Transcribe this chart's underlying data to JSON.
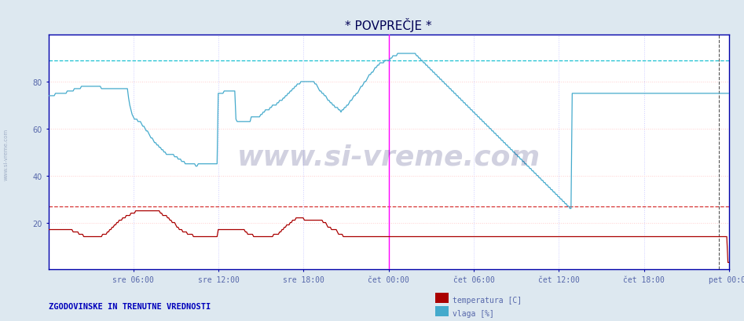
{
  "title": "* POVPREČJE *",
  "bg_color": "#dde8f0",
  "plot_bg_color": "#ffffff",
  "ylim": [
    0,
    100
  ],
  "x_tick_labels": [
    "sre 06:00",
    "sre 12:00",
    "sre 18:00",
    "čet 00:00",
    "čet 06:00",
    "čet 12:00",
    "čet 18:00",
    "pet 00:00"
  ],
  "y_tick_positions": [
    20,
    40,
    60,
    80
  ],
  "y_tick_labels": [
    "20",
    "40",
    "60",
    "80"
  ],
  "temp_color": "#aa0000",
  "vlaga_color": "#44aacc",
  "hline_temp": 27,
  "hline_vlaga": 89,
  "hline_temp_color": "#cc0000",
  "hline_vlaga_color": "#00bbcc",
  "footer_text": "ZGODOVINSKE IN TRENUTNE VREDNOSTI",
  "footer_color": "#0000bb",
  "legend_temp_label": "temperatura [C]",
  "legend_vlaga_label": "vlaga [%]",
  "watermark": "www.si-vreme.com",
  "title_color": "#000055",
  "title_fontsize": 11,
  "axis_label_color": "#5566aa",
  "num_points": 576,
  "temp_data": [
    17,
    17,
    17,
    17,
    17,
    17,
    17,
    17,
    17,
    17,
    17,
    17,
    17,
    17,
    17,
    17,
    17,
    17,
    17,
    17,
    17,
    16,
    16,
    16,
    16,
    16,
    15,
    15,
    15,
    15,
    14,
    14,
    14,
    14,
    14,
    14,
    14,
    14,
    14,
    14,
    14,
    14,
    14,
    14,
    14,
    14,
    15,
    15,
    15,
    15,
    16,
    16,
    17,
    17,
    18,
    18,
    19,
    19,
    20,
    20,
    21,
    21,
    21,
    22,
    22,
    22,
    23,
    23,
    23,
    23,
    24,
    24,
    24,
    24,
    25,
    25,
    25,
    25,
    25,
    25,
    25,
    25,
    25,
    25,
    25,
    25,
    25,
    25,
    25,
    25,
    25,
    25,
    25,
    25,
    25,
    24,
    24,
    23,
    23,
    23,
    23,
    22,
    22,
    21,
    21,
    20,
    20,
    20,
    19,
    18,
    18,
    17,
    17,
    17,
    16,
    16,
    16,
    16,
    15,
    15,
    15,
    15,
    15,
    14,
    14,
    14,
    14,
    14,
    14,
    14,
    14,
    14,
    14,
    14,
    14,
    14,
    14,
    14,
    14,
    14,
    14,
    14,
    14,
    14,
    17,
    17,
    17,
    17,
    17,
    17,
    17,
    17,
    17,
    17,
    17,
    17,
    17,
    17,
    17,
    17,
    17,
    17,
    17,
    17,
    17,
    17,
    17,
    16,
    16,
    15,
    15,
    15,
    15,
    15,
    14,
    14,
    14,
    14,
    14,
    14,
    14,
    14,
    14,
    14,
    14,
    14,
    14,
    14,
    14,
    14,
    14,
    15,
    15,
    15,
    15,
    15,
    16,
    16,
    17,
    17,
    18,
    18,
    19,
    19,
    19,
    20,
    20,
    21,
    21,
    21,
    22,
    22,
    22,
    22,
    22,
    22,
    22,
    21,
    21,
    21,
    21,
    21,
    21,
    21,
    21,
    21,
    21,
    21,
    21,
    21,
    21,
    21,
    21,
    20,
    20,
    20,
    19,
    18,
    18,
    18,
    17,
    17,
    17,
    17,
    17,
    16,
    15,
    15,
    15,
    15,
    14,
    14,
    14,
    14,
    14,
    14,
    14,
    14,
    14,
    14,
    14,
    14,
    14,
    14,
    14,
    14,
    14,
    14,
    14,
    14,
    14,
    14,
    14,
    14,
    14,
    14,
    14,
    14,
    14,
    14,
    14,
    14,
    14,
    14,
    14,
    14,
    14,
    14,
    14,
    14,
    14,
    14,
    14,
    14,
    14,
    14,
    14,
    14,
    14,
    14,
    14,
    14,
    14,
    14,
    14,
    14,
    14,
    14,
    14,
    14,
    14,
    14,
    14,
    14,
    14,
    14,
    14,
    14,
    14,
    14,
    14,
    14,
    14,
    14,
    14,
    14,
    14,
    14,
    14,
    14,
    14,
    14,
    14,
    14,
    14,
    14,
    14,
    14,
    14,
    14,
    14,
    14,
    14,
    14,
    14,
    14,
    14,
    14,
    14,
    14,
    14,
    14,
    14,
    14,
    14,
    14,
    14,
    14,
    14,
    14,
    14,
    14,
    14,
    14,
    14,
    14,
    14,
    14,
    14,
    14,
    14,
    14,
    14,
    14,
    14,
    14,
    14,
    14,
    14,
    14,
    14,
    14,
    14,
    14,
    14,
    14,
    14,
    14,
    14,
    14,
    14,
    14,
    14,
    14,
    14,
    14,
    14,
    14,
    14,
    14,
    14,
    14,
    14,
    14,
    14,
    14,
    14,
    14,
    14,
    14,
    14,
    14,
    14,
    14,
    14,
    14,
    14,
    14,
    14,
    14,
    14,
    14,
    14,
    14,
    14,
    14,
    14,
    14,
    14,
    14,
    14,
    14,
    14,
    14,
    14,
    14,
    14,
    14,
    14,
    14,
    14,
    14,
    14,
    14,
    14,
    14,
    14,
    14,
    14,
    14,
    14,
    14,
    14,
    14,
    14,
    14,
    14,
    14,
    14,
    14,
    14,
    14,
    14,
    14,
    14,
    14,
    14,
    14,
    14,
    14,
    14,
    14,
    14,
    14,
    14,
    14,
    14,
    14,
    14,
    14,
    14,
    14,
    14,
    14,
    14,
    14,
    14,
    14,
    14,
    14,
    14,
    14,
    14,
    14,
    14,
    14,
    14,
    14,
    14,
    14,
    14,
    14,
    14,
    14,
    14,
    14,
    14,
    14,
    14,
    14,
    14,
    14,
    14,
    14,
    14,
    14,
    14,
    14,
    14,
    14,
    14,
    14,
    14,
    14,
    14,
    14,
    14,
    14,
    14,
    14,
    14,
    14,
    14,
    14,
    14,
    14,
    14,
    14,
    14,
    14,
    14,
    14,
    14,
    14,
    14,
    14,
    14,
    14,
    14,
    14,
    14,
    14,
    14,
    14,
    14,
    14,
    14,
    14,
    14,
    14,
    14,
    14,
    14,
    14,
    14,
    14,
    14,
    14,
    14,
    14,
    14,
    14,
    14,
    14,
    14,
    14,
    3,
    3
  ],
  "vlaga_data": [
    74,
    74,
    74,
    74,
    74,
    74,
    75,
    75,
    75,
    75,
    75,
    75,
    75,
    75,
    75,
    75,
    76,
    76,
    76,
    76,
    76,
    76,
    77,
    77,
    77,
    77,
    77,
    77,
    78,
    78,
    78,
    78,
    78,
    78,
    78,
    78,
    78,
    78,
    78,
    78,
    78,
    78,
    78,
    78,
    78,
    77,
    77,
    77,
    77,
    77,
    77,
    77,
    77,
    77,
    77,
    77,
    77,
    77,
    77,
    77,
    77,
    77,
    77,
    77,
    77,
    77,
    77,
    77,
    73,
    70,
    68,
    66,
    65,
    64,
    64,
    64,
    63,
    63,
    63,
    62,
    61,
    61,
    60,
    59,
    59,
    58,
    57,
    56,
    56,
    55,
    54,
    54,
    53,
    53,
    52,
    52,
    51,
    51,
    50,
    50,
    49,
    49,
    49,
    49,
    49,
    49,
    49,
    48,
    48,
    48,
    47,
    47,
    47,
    46,
    46,
    46,
    45,
    45,
    45,
    45,
    45,
    45,
    45,
    45,
    45,
    44,
    44,
    45,
    45,
    45,
    45,
    45,
    45,
    45,
    45,
    45,
    45,
    45,
    45,
    45,
    45,
    45,
    45,
    45,
    75,
    75,
    75,
    75,
    75,
    76,
    76,
    76,
    76,
    76,
    76,
    76,
    76,
    76,
    76,
    64,
    63,
    63,
    63,
    63,
    63,
    63,
    63,
    63,
    63,
    63,
    63,
    63,
    65,
    65,
    65,
    65,
    65,
    65,
    65,
    65,
    66,
    66,
    67,
    67,
    68,
    68,
    68,
    68,
    69,
    69,
    70,
    70,
    70,
    70,
    71,
    71,
    72,
    72,
    72,
    73,
    73,
    74,
    74,
    75,
    75,
    76,
    76,
    77,
    77,
    78,
    78,
    79,
    79,
    79,
    80,
    80,
    80,
    80,
    80,
    80,
    80,
    80,
    80,
    80,
    80,
    80,
    79,
    79,
    78,
    77,
    76,
    76,
    75,
    75,
    74,
    74,
    73,
    72,
    72,
    71,
    71,
    70,
    70,
    69,
    69,
    69,
    68,
    68,
    67,
    68,
    68,
    69,
    69,
    70,
    70,
    71,
    72,
    72,
    73,
    74,
    74,
    75,
    75,
    76,
    77,
    78,
    78,
    79,
    80,
    80,
    81,
    82,
    83,
    83,
    84,
    84,
    85,
    86,
    86,
    87,
    87,
    88,
    88,
    88,
    88,
    89,
    89,
    89,
    89,
    89,
    90,
    90,
    91,
    91,
    91,
    91,
    92,
    92,
    92,
    92,
    92,
    92,
    92,
    92,
    92,
    92,
    92,
    92,
    92,
    92,
    92,
    92,
    91,
    91,
    90,
    90,
    89,
    89,
    88,
    88,
    87,
    87,
    86,
    86,
    85,
    85,
    84,
    84,
    83,
    83,
    82,
    82,
    81,
    81,
    80,
    80,
    79,
    79,
    78,
    78,
    77,
    77,
    76,
    76,
    75,
    75,
    74,
    74,
    73,
    73,
    72,
    72,
    71,
    71,
    70,
    70,
    69,
    69,
    68,
    68,
    67,
    67,
    66,
    66,
    65,
    65,
    64,
    64,
    63,
    63,
    62,
    62,
    61,
    61,
    60,
    60,
    59,
    59,
    58,
    58,
    57,
    57,
    56,
    56,
    55,
    55,
    54,
    54,
    53,
    53,
    52,
    52,
    51,
    51,
    50,
    50,
    49,
    49,
    48,
    48,
    47,
    47,
    46,
    46,
    45,
    45,
    44,
    44,
    43,
    43,
    42,
    42,
    41,
    41,
    40,
    40,
    39,
    39,
    38,
    38,
    37,
    37,
    36,
    36,
    35,
    35,
    34,
    34,
    33,
    33,
    32,
    32,
    31,
    31,
    30,
    30,
    29,
    29,
    28,
    28,
    27,
    27,
    26,
    26,
    75,
    75,
    75,
    75,
    75,
    75,
    75,
    75,
    75,
    75,
    75,
    75,
    75,
    75,
    75,
    75,
    75,
    75,
    75,
    75,
    75,
    75,
    75,
    75,
    75,
    75,
    75,
    75,
    75,
    75,
    75,
    75,
    75,
    75,
    75,
    75,
    75,
    75,
    75,
    75,
    75,
    75,
    75,
    75,
    75,
    75,
    75,
    75,
    75,
    75,
    75,
    75,
    75,
    75,
    75,
    75,
    75,
    75,
    75,
    75,
    75,
    75,
    75,
    75,
    75,
    75,
    75,
    75,
    75,
    75,
    75,
    75,
    75,
    75,
    75,
    75,
    75,
    75,
    75,
    75,
    75,
    75,
    75,
    75,
    75,
    75,
    75,
    75,
    75,
    75,
    75,
    75,
    75,
    75,
    75,
    75,
    75,
    75,
    75,
    75,
    75,
    75,
    75,
    75,
    75,
    75,
    75,
    75,
    75,
    75,
    75,
    75,
    75,
    75,
    75,
    75,
    75,
    75,
    75,
    75,
    75,
    75,
    75,
    75,
    75,
    75,
    75,
    75,
    75,
    75,
    75,
    75,
    75,
    75
  ]
}
